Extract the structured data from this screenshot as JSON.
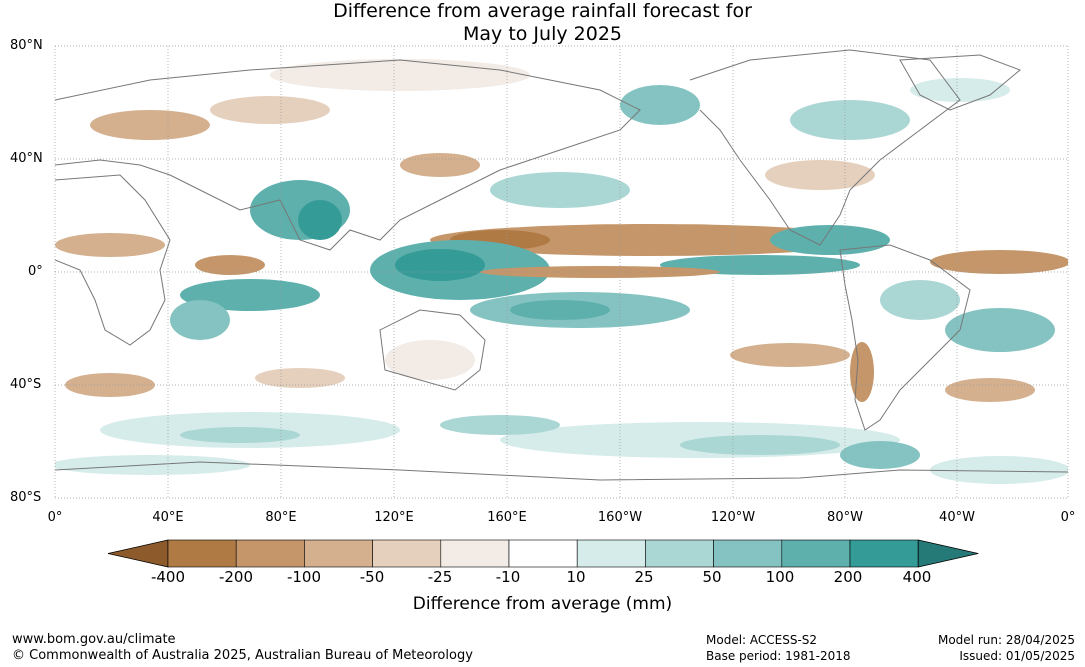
{
  "title": {
    "line1": "Difference from average rainfall forecast for",
    "line2": "May to July 2025"
  },
  "map": {
    "lat_labels": [
      "80°N",
      "40°N",
      "0°",
      "40°S",
      "80°S"
    ],
    "lon_labels": [
      "0°",
      "40°E",
      "80°E",
      "120°E",
      "160°E",
      "160°W",
      "120°W",
      "80°W",
      "40°W",
      "0°"
    ],
    "anomaly_bands": [
      {
        "name": "north-atlantic-teal",
        "value": 25
      },
      {
        "name": "equatorial-pacific-dry",
        "value": -100
      },
      {
        "name": "maritime-continent-wet",
        "value": 200
      },
      {
        "name": "south-pacific-convergence-wet",
        "value": 100
      },
      {
        "name": "eastern-pacific-wet",
        "value": 200
      },
      {
        "name": "southern-ocean-wet",
        "value": 25
      },
      {
        "name": "indian-ocean-wet",
        "value": 100
      }
    ]
  },
  "colorbar": {
    "colors": [
      "#8c5a2b",
      "#b07a45",
      "#c49669",
      "#d4b08e",
      "#e5d0bd",
      "#f2ebe6",
      "#ffffff",
      "#d5ecea",
      "#aad6d4",
      "#84c3c1",
      "#5eb0ad",
      "#349b97",
      "#257a77"
    ],
    "labels": [
      "-400",
      "-200",
      "-100",
      "-50",
      "-25",
      "-10",
      "10",
      "25",
      "50",
      "100",
      "200",
      "400"
    ],
    "title": "Difference from average (mm)"
  },
  "footer": {
    "url": "www.bom.gov.au/climate",
    "copyright": "© Commonwealth of Australia 2025, Australian Bureau of Meteorology",
    "model": "Model: ACCESS-S2",
    "base_period": "Base period: 1981-2018",
    "model_run": "Model run: 28/04/2025",
    "issued": "Issued: 01/05/2025"
  }
}
